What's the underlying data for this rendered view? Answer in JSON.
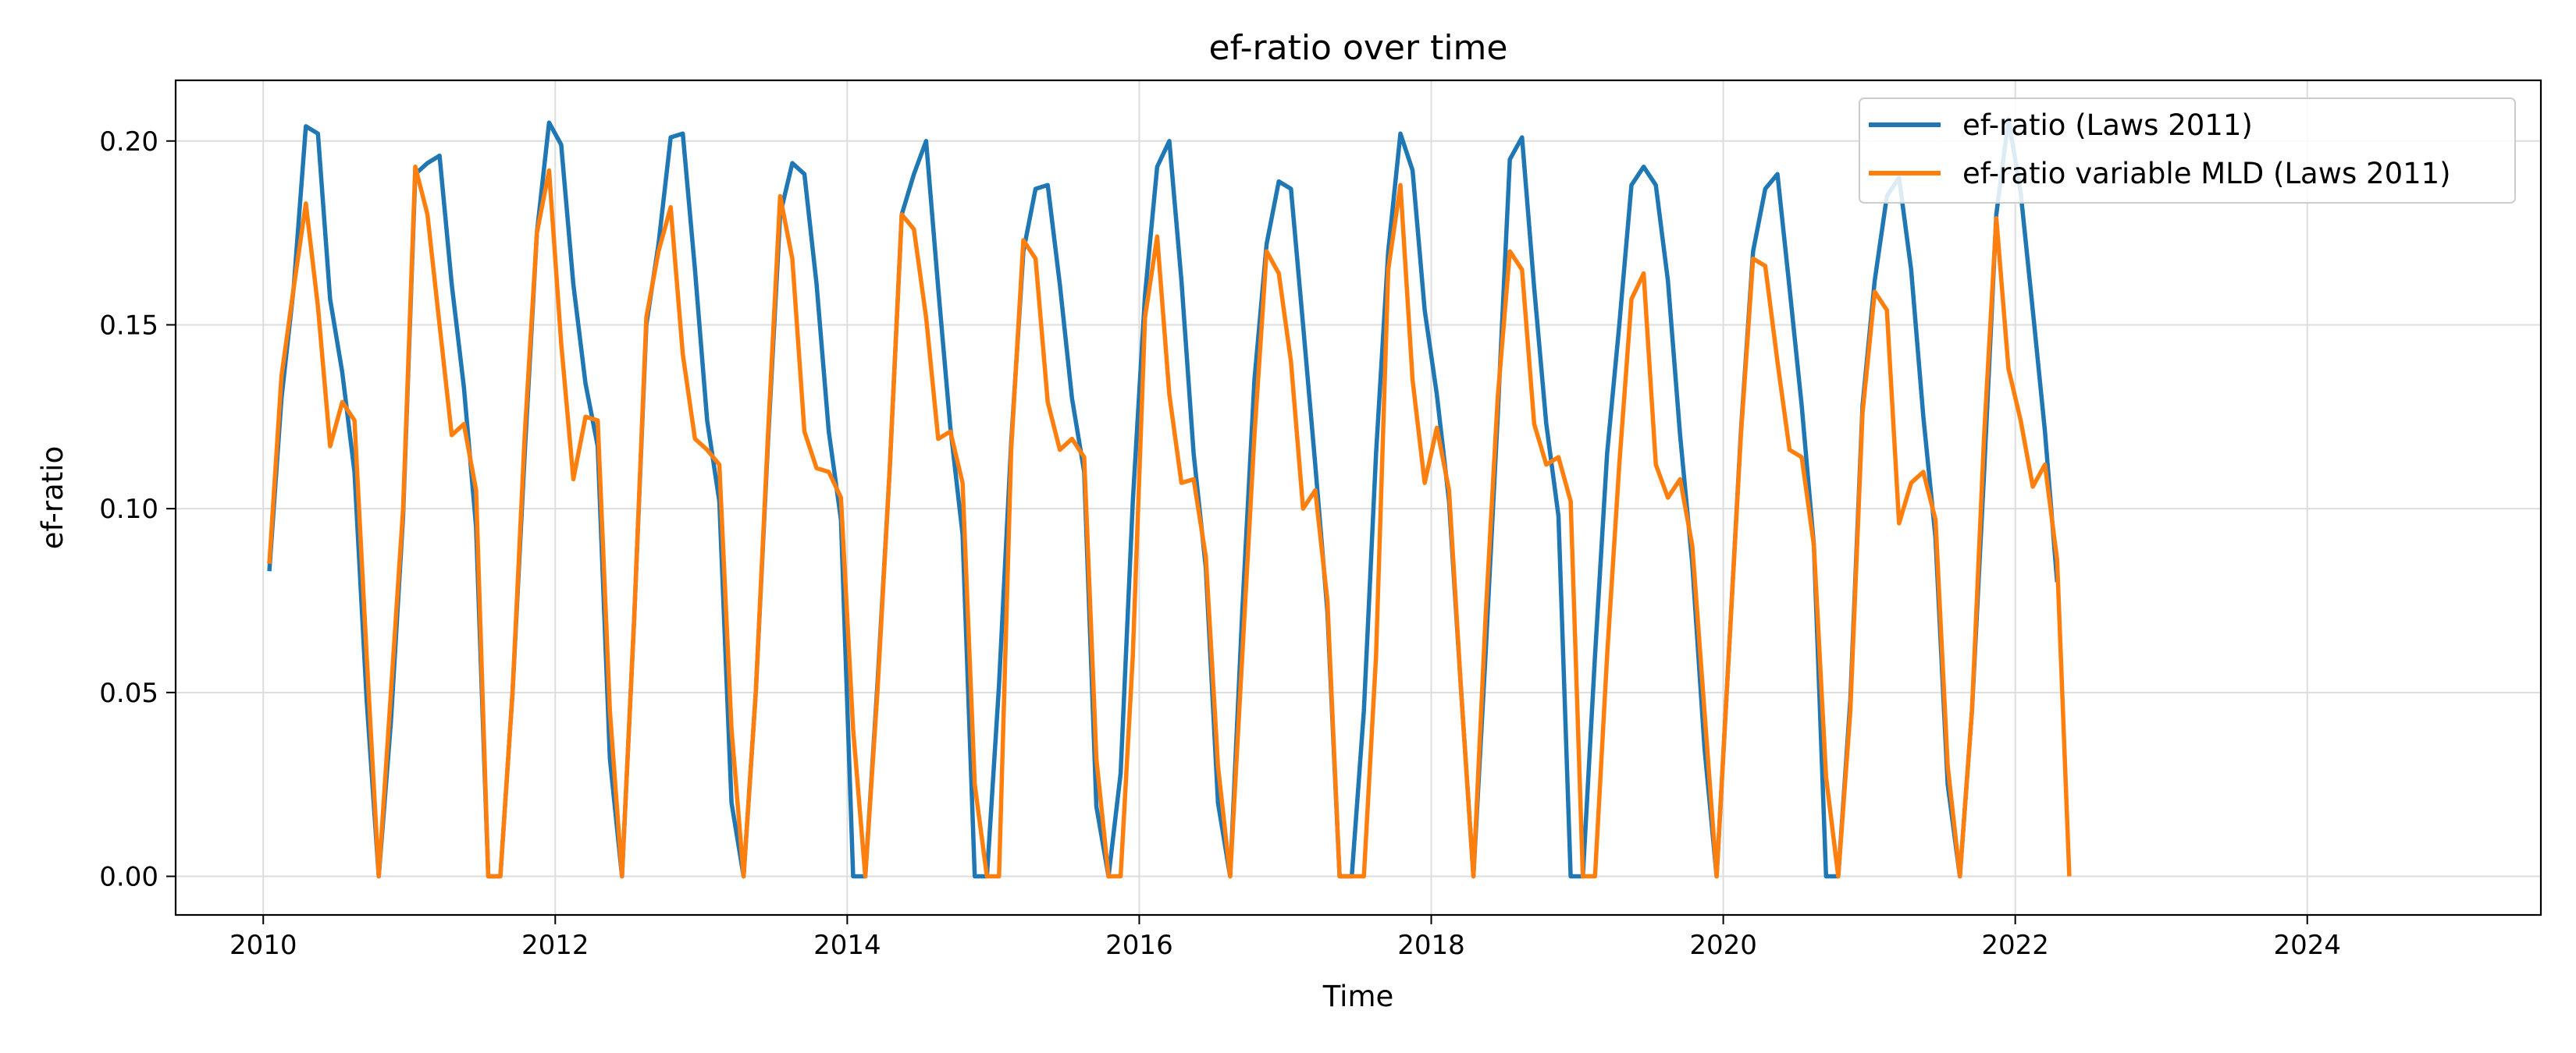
{
  "chart_data": {
    "type": "line",
    "title": "ef-ratio over time",
    "xlabel": "Time",
    "ylabel": "ef-ratio",
    "xlim": [
      2009.4,
      2025.6
    ],
    "ylim": [
      -0.0105,
      0.2165
    ],
    "xticks": [
      2010,
      2012,
      2014,
      2016,
      2018,
      2020,
      2022,
      2024
    ],
    "xtick_labels": [
      "2010",
      "2012",
      "2014",
      "2016",
      "2018",
      "2020",
      "2022",
      "2024"
    ],
    "yticks": [
      0.0,
      0.05,
      0.1,
      0.15,
      0.2
    ],
    "ytick_labels": [
      "0.00",
      "0.05",
      "0.10",
      "0.15",
      "0.20"
    ],
    "grid": true,
    "legend_position": "top-right",
    "x_start_year": 2010.0417,
    "x_step_years": 0.0833,
    "series": [
      {
        "name": "ef-ratio (Laws 2011)",
        "color": "#1f77b4",
        "values": [
          0.083,
          0.13,
          0.16,
          0.204,
          0.202,
          0.157,
          0.137,
          0.11,
          0.048,
          0.0,
          0.042,
          0.098,
          0.191,
          0.194,
          0.196,
          0.161,
          0.133,
          0.095,
          0.0,
          0.0,
          0.05,
          0.115,
          0.175,
          0.205,
          0.199,
          0.161,
          0.134,
          0.117,
          0.032,
          0.0,
          0.07,
          0.15,
          0.172,
          0.201,
          0.202,
          0.165,
          0.124,
          0.102,
          0.02,
          0.0,
          0.05,
          0.118,
          0.18,
          0.194,
          0.191,
          0.161,
          0.121,
          0.097,
          0.0,
          0.0,
          0.052,
          0.11,
          0.18,
          0.191,
          0.2,
          0.16,
          0.122,
          0.093,
          0.0,
          0.0,
          0.052,
          0.118,
          0.17,
          0.187,
          0.188,
          0.161,
          0.13,
          0.11,
          0.019,
          0.0,
          0.028,
          0.102,
          0.158,
          0.193,
          0.2,
          0.162,
          0.115,
          0.084,
          0.02,
          0.0,
          0.072,
          0.135,
          0.172,
          0.189,
          0.187,
          0.15,
          0.112,
          0.072,
          0.0,
          0.0,
          0.045,
          0.115,
          0.17,
          0.202,
          0.192,
          0.154,
          0.131,
          0.102,
          0.05,
          0.0,
          0.06,
          0.125,
          0.195,
          0.201,
          0.16,
          0.123,
          0.098,
          0.0,
          0.0,
          0.06,
          0.115,
          0.15,
          0.188,
          0.193,
          0.188,
          0.162,
          0.12,
          0.085,
          0.035,
          0.0,
          0.06,
          0.121,
          0.17,
          0.187,
          0.191,
          0.16,
          0.128,
          0.09,
          0.0,
          0.0,
          0.048,
          0.128,
          0.162,
          0.185,
          0.19,
          0.165,
          0.125,
          0.092,
          0.025,
          0.0,
          0.045,
          0.11,
          0.18,
          0.206,
          0.186,
          0.154,
          0.121,
          0.08
        ]
      },
      {
        "name": "ef-ratio variable MLD (Laws 2011)",
        "color": "#ff7f0e",
        "values": [
          0.085,
          0.136,
          0.16,
          0.183,
          0.155,
          0.117,
          0.129,
          0.124,
          0.06,
          0.0,
          0.05,
          0.1,
          0.193,
          0.18,
          0.15,
          0.12,
          0.123,
          0.105,
          0.0,
          0.0,
          0.05,
          0.12,
          0.175,
          0.192,
          0.145,
          0.108,
          0.125,
          0.124,
          0.045,
          0.0,
          0.07,
          0.152,
          0.17,
          0.182,
          0.142,
          0.119,
          0.116,
          0.112,
          0.04,
          0.0,
          0.05,
          0.12,
          0.185,
          0.168,
          0.121,
          0.111,
          0.11,
          0.103,
          0.04,
          0.0,
          0.05,
          0.11,
          0.18,
          0.176,
          0.152,
          0.119,
          0.121,
          0.107,
          0.025,
          0.0,
          0.0,
          0.116,
          0.173,
          0.168,
          0.129,
          0.116,
          0.119,
          0.114,
          0.032,
          0.0,
          0.0,
          0.06,
          0.152,
          0.174,
          0.131,
          0.107,
          0.108,
          0.087,
          0.03,
          0.0,
          0.06,
          0.12,
          0.17,
          0.164,
          0.14,
          0.1,
          0.105,
          0.075,
          0.0,
          0.0,
          0.0,
          0.06,
          0.165,
          0.188,
          0.135,
          0.107,
          0.122,
          0.105,
          0.05,
          0.0,
          0.07,
          0.13,
          0.17,
          0.165,
          0.123,
          0.112,
          0.114,
          0.102,
          0.0,
          0.0,
          0.06,
          0.112,
          0.157,
          0.164,
          0.112,
          0.103,
          0.108,
          0.09,
          0.045,
          0.0,
          0.06,
          0.12,
          0.168,
          0.166,
          0.14,
          0.116,
          0.114,
          0.09,
          0.027,
          0.0,
          0.045,
          0.126,
          0.159,
          0.154,
          0.096,
          0.107,
          0.11,
          0.097,
          0.03,
          0.0,
          0.045,
          0.12,
          0.179,
          0.138,
          0.124,
          0.106,
          0.112,
          0.086,
          0.0
        ]
      }
    ]
  }
}
